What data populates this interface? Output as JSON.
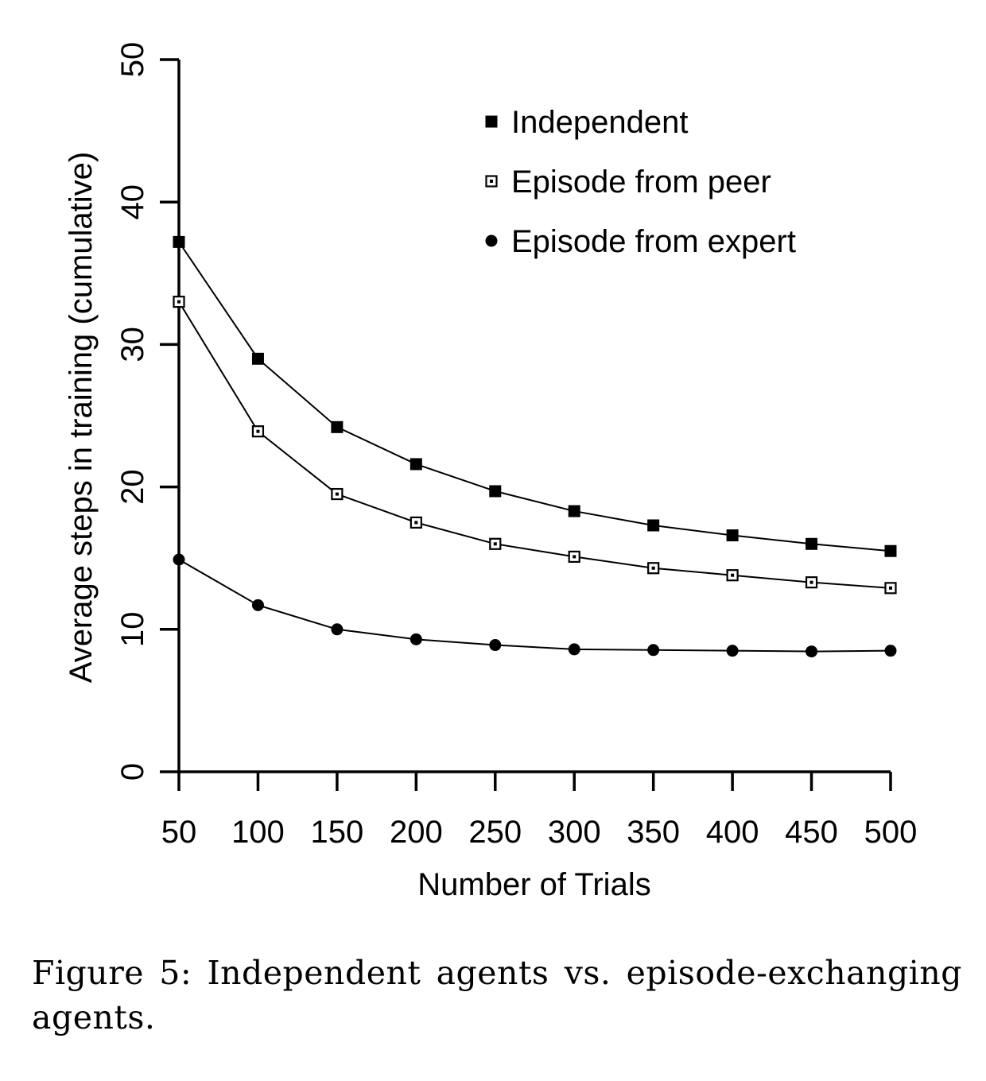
{
  "chart_data": {
    "type": "line",
    "xlabel": "Number of Trials",
    "ylabel": "Average steps in training (cumulative)",
    "x": [
      50,
      100,
      150,
      200,
      250,
      300,
      350,
      400,
      450,
      500
    ],
    "xticks": [
      "50",
      "100",
      "150",
      "200",
      "250",
      "300",
      "350",
      "400",
      "450",
      "500"
    ],
    "yticks": [
      "0",
      "10",
      "20",
      "30",
      "40",
      "50"
    ],
    "ylim": [
      0,
      50
    ],
    "legend_position": "top-right",
    "series": [
      {
        "name": "Independent",
        "marker": "filled-square",
        "values": [
          37.2,
          29.0,
          24.2,
          21.6,
          19.7,
          18.3,
          17.3,
          16.6,
          16.0,
          15.5
        ]
      },
      {
        "name": "Episode from peer",
        "marker": "open-square",
        "values": [
          33.0,
          23.9,
          19.5,
          17.5,
          16.0,
          15.1,
          14.3,
          13.8,
          13.3,
          12.9
        ]
      },
      {
        "name": "Episode from expert",
        "marker": "filled-circle",
        "values": [
          14.9,
          11.7,
          10.0,
          9.3,
          8.9,
          8.6,
          8.55,
          8.5,
          8.45,
          8.5
        ]
      }
    ]
  },
  "caption": "Figure 5: Independent agents vs. episode-exchanging agents."
}
